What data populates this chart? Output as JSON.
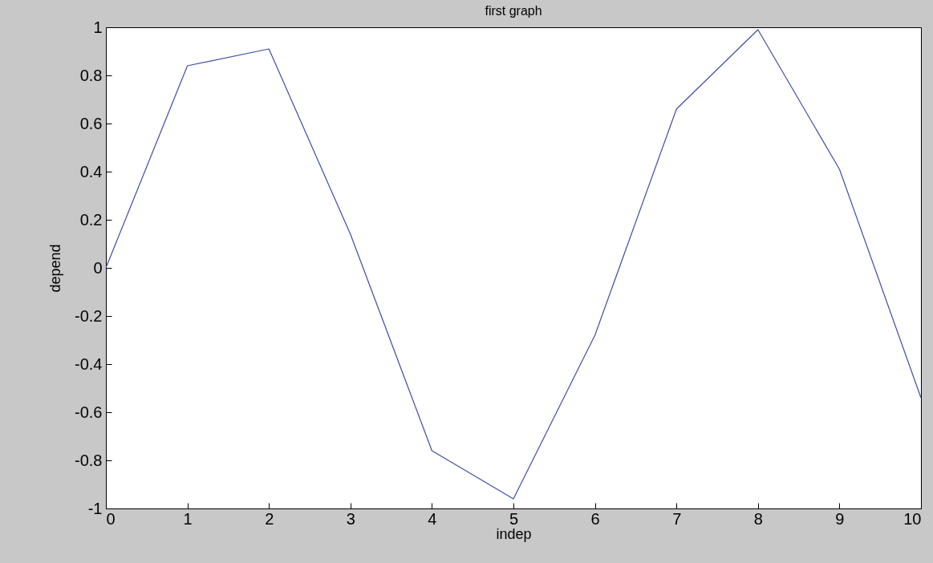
{
  "chart_data": {
    "type": "line",
    "title": "first graph",
    "xlabel": "indep",
    "ylabel": "depend",
    "x": [
      0,
      1,
      2,
      3,
      4,
      5,
      6,
      7,
      8,
      9,
      10
    ],
    "series": [
      {
        "color": "#3d4fa8",
        "values": [
          0,
          0.84,
          0.91,
          0.14,
          -0.76,
          -0.96,
          -0.28,
          0.66,
          0.99,
          0.41,
          -0.54
        ]
      }
    ],
    "xlim": [
      0,
      10
    ],
    "ylim": [
      -1,
      1
    ],
    "xticks": [
      0,
      1,
      2,
      3,
      4,
      5,
      6,
      7,
      8,
      9,
      10
    ],
    "yticks": [
      -1,
      -0.8,
      -0.6,
      -0.4,
      -0.2,
      0,
      0.2,
      0.4,
      0.6,
      0.8,
      1
    ]
  }
}
